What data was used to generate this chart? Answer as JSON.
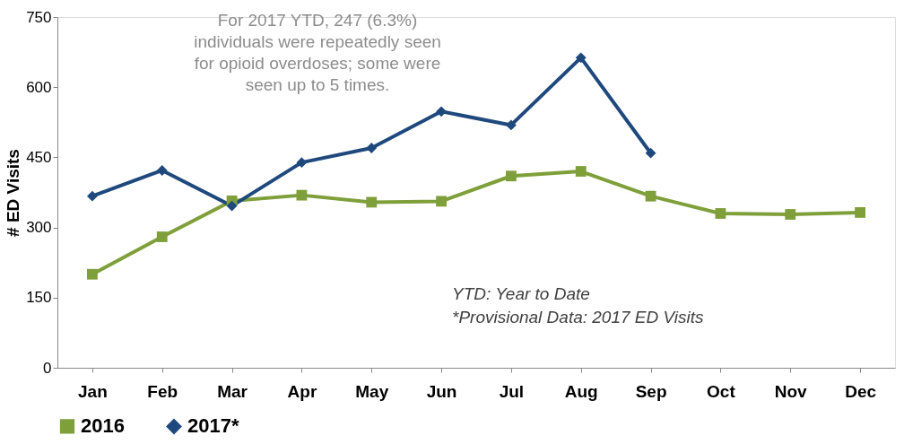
{
  "chart_data": {
    "type": "line",
    "ylabel": "# ED Visits",
    "categories": [
      "Jan",
      "Feb",
      "Mar",
      "Apr",
      "May",
      "Jun",
      "Jul",
      "Aug",
      "Sep",
      "Oct",
      "Nov",
      "Dec"
    ],
    "series": [
      {
        "name": "2016",
        "color": "#7f9f3a",
        "marker": "square",
        "values": [
          200,
          280,
          357,
          369,
          354,
          356,
          410,
          420,
          367,
          330,
          328,
          332
        ]
      },
      {
        "name": "2017*",
        "color": "#1f497d",
        "marker": "diamond",
        "values": [
          367,
          422,
          346,
          439,
          470,
          548,
          519,
          663,
          459,
          null,
          null,
          null
        ]
      }
    ],
    "ylim": [
      0,
      750
    ],
    "yticks": [
      0,
      150,
      300,
      450,
      600,
      750
    ],
    "grid": false,
    "legend": "bottom",
    "line_style": "solid",
    "annotations": [
      "For 2017 YTD, 247 (6.3%) individuals were repeatedly seen for opioid overdoses; some were seen up to 5 times.",
      "YTD: Year to Date",
      "*Provisional Data: 2017 ED Visits"
    ]
  }
}
